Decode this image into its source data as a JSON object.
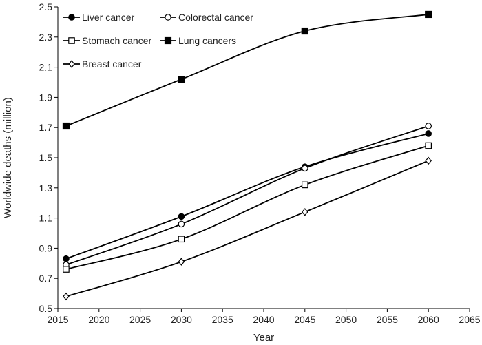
{
  "chart_data": {
    "type": "line",
    "title": "",
    "xlabel": "Year",
    "ylabel": "Worldwide deaths (million)",
    "xlim": [
      2015,
      2065
    ],
    "ylim": [
      0.5,
      2.5
    ],
    "xticks": [
      2015,
      2020,
      2025,
      2030,
      2035,
      2040,
      2045,
      2050,
      2055,
      2060,
      2065
    ],
    "yticks": [
      "0.5",
      "0.7",
      "0.9",
      "1.1",
      "1.3",
      "1.5",
      "1.7",
      "1.9",
      "2.1",
      "2.3",
      "2.5"
    ],
    "grid": false,
    "legend_position": "top-left",
    "x": [
      2016,
      2030,
      2045,
      2060
    ],
    "series": [
      {
        "name": "Liver cancer",
        "marker": "circle-filled",
        "values": [
          0.83,
          1.11,
          1.44,
          1.66
        ]
      },
      {
        "name": "Colorectal cancer",
        "marker": "circle-open",
        "values": [
          0.79,
          1.06,
          1.43,
          1.71
        ]
      },
      {
        "name": "Stomach cancer",
        "marker": "square-open",
        "values": [
          0.76,
          0.96,
          1.32,
          1.58
        ]
      },
      {
        "name": "Lung cancers",
        "marker": "square-filled",
        "values": [
          1.71,
          2.02,
          2.34,
          2.45
        ]
      },
      {
        "name": "Breast cancer",
        "marker": "diamond-open",
        "values": [
          0.58,
          0.81,
          1.14,
          1.48
        ]
      }
    ],
    "colors": {
      "line": "#000000",
      "axis": "#000000",
      "fill_open": "#ffffff"
    }
  }
}
